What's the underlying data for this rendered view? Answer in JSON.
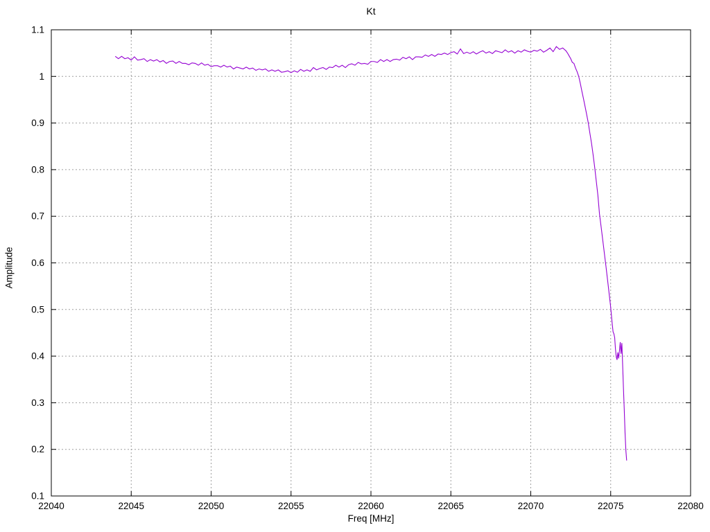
{
  "chart_data": {
    "type": "line",
    "title": "Kt",
    "xlabel": "Freq [MHz]",
    "ylabel": "Amplitude",
    "xlim": [
      22040,
      22080
    ],
    "ylim": [
      0.1,
      1.1
    ],
    "xticks": [
      22040,
      22045,
      22050,
      22055,
      22060,
      22065,
      22070,
      22075,
      22080
    ],
    "xtick_labels": [
      "22040",
      "22045",
      "22050",
      "22055",
      "22060",
      "22065",
      "22070",
      "22075",
      "22080"
    ],
    "yticks": [
      0.1,
      0.2,
      0.3,
      0.4,
      0.5,
      0.6,
      0.7,
      0.8,
      0.9,
      1.0,
      1.1
    ],
    "ytick_labels": [
      "0.1",
      "0.2",
      "0.3",
      "0.4",
      "0.5",
      "0.6",
      "0.7",
      "0.8",
      "0.9",
      "1",
      "1.1"
    ],
    "grid": true,
    "legend": "none",
    "colors": {
      "line": "#9400d3",
      "grid": "#9e9e9e",
      "axis": "#000000"
    },
    "series": [
      {
        "name": "Kt",
        "points": [
          [
            22044.0,
            1.043
          ],
          [
            22044.2,
            1.038
          ],
          [
            22044.4,
            1.043
          ],
          [
            22044.6,
            1.038
          ],
          [
            22044.8,
            1.04
          ],
          [
            22045.0,
            1.035
          ],
          [
            22045.2,
            1.042
          ],
          [
            22045.4,
            1.035
          ],
          [
            22045.6,
            1.036
          ],
          [
            22045.8,
            1.038
          ],
          [
            22046.0,
            1.032
          ],
          [
            22046.2,
            1.036
          ],
          [
            22046.4,
            1.033
          ],
          [
            22046.6,
            1.036
          ],
          [
            22046.8,
            1.031
          ],
          [
            22047.0,
            1.034
          ],
          [
            22047.2,
            1.028
          ],
          [
            22047.4,
            1.032
          ],
          [
            22047.6,
            1.033
          ],
          [
            22047.8,
            1.028
          ],
          [
            22048.0,
            1.032
          ],
          [
            22048.2,
            1.028
          ],
          [
            22048.4,
            1.028
          ],
          [
            22048.6,
            1.025
          ],
          [
            22048.8,
            1.029
          ],
          [
            22049.0,
            1.028
          ],
          [
            22049.2,
            1.024
          ],
          [
            22049.4,
            1.029
          ],
          [
            22049.6,
            1.024
          ],
          [
            22049.8,
            1.026
          ],
          [
            22050.0,
            1.021
          ],
          [
            22050.2,
            1.023
          ],
          [
            22050.4,
            1.023
          ],
          [
            22050.6,
            1.02
          ],
          [
            22050.8,
            1.024
          ],
          [
            22051.0,
            1.02
          ],
          [
            22051.2,
            1.022
          ],
          [
            22051.4,
            1.016
          ],
          [
            22051.6,
            1.02
          ],
          [
            22051.8,
            1.018
          ],
          [
            22052.0,
            1.016
          ],
          [
            22052.2,
            1.02
          ],
          [
            22052.4,
            1.016
          ],
          [
            22052.6,
            1.018
          ],
          [
            22052.8,
            1.013
          ],
          [
            22053.0,
            1.016
          ],
          [
            22053.2,
            1.014
          ],
          [
            22053.4,
            1.016
          ],
          [
            22053.6,
            1.011
          ],
          [
            22053.8,
            1.014
          ],
          [
            22054.0,
            1.011
          ],
          [
            22054.2,
            1.014
          ],
          [
            22054.4,
            1.009
          ],
          [
            22054.6,
            1.01
          ],
          [
            22054.8,
            1.012
          ],
          [
            22055.0,
            1.008
          ],
          [
            22055.2,
            1.012
          ],
          [
            22055.4,
            1.009
          ],
          [
            22055.6,
            1.015
          ],
          [
            22055.8,
            1.011
          ],
          [
            22056.0,
            1.014
          ],
          [
            22056.2,
            1.011
          ],
          [
            22056.4,
            1.019
          ],
          [
            22056.6,
            1.014
          ],
          [
            22056.8,
            1.017
          ],
          [
            22057.0,
            1.019
          ],
          [
            22057.2,
            1.015
          ],
          [
            22057.4,
            1.02
          ],
          [
            22057.6,
            1.019
          ],
          [
            22057.8,
            1.024
          ],
          [
            22058.0,
            1.02
          ],
          [
            22058.2,
            1.024
          ],
          [
            22058.4,
            1.019
          ],
          [
            22058.6,
            1.025
          ],
          [
            22058.8,
            1.027
          ],
          [
            22059.0,
            1.024
          ],
          [
            22059.2,
            1.03
          ],
          [
            22059.4,
            1.027
          ],
          [
            22059.6,
            1.028
          ],
          [
            22059.8,
            1.026
          ],
          [
            22060.0,
            1.032
          ],
          [
            22060.2,
            1.032
          ],
          [
            22060.4,
            1.03
          ],
          [
            22060.6,
            1.036
          ],
          [
            22060.8,
            1.032
          ],
          [
            22061.0,
            1.036
          ],
          [
            22061.2,
            1.032
          ],
          [
            22061.4,
            1.036
          ],
          [
            22061.6,
            1.037
          ],
          [
            22061.8,
            1.035
          ],
          [
            22062.0,
            1.041
          ],
          [
            22062.2,
            1.038
          ],
          [
            22062.4,
            1.042
          ],
          [
            22062.6,
            1.036
          ],
          [
            22062.8,
            1.042
          ],
          [
            22063.0,
            1.042
          ],
          [
            22063.2,
            1.041
          ],
          [
            22063.4,
            1.046
          ],
          [
            22063.6,
            1.043
          ],
          [
            22063.8,
            1.047
          ],
          [
            22064.0,
            1.043
          ],
          [
            22064.2,
            1.048
          ],
          [
            22064.4,
            1.047
          ],
          [
            22064.6,
            1.05
          ],
          [
            22064.8,
            1.047
          ],
          [
            22065.0,
            1.051
          ],
          [
            22065.2,
            1.053
          ],
          [
            22065.4,
            1.048
          ],
          [
            22065.6,
            1.059
          ],
          [
            22065.8,
            1.049
          ],
          [
            22066.0,
            1.052
          ],
          [
            22066.2,
            1.049
          ],
          [
            22066.4,
            1.053
          ],
          [
            22066.6,
            1.048
          ],
          [
            22066.8,
            1.052
          ],
          [
            22067.0,
            1.055
          ],
          [
            22067.2,
            1.05
          ],
          [
            22067.4,
            1.053
          ],
          [
            22067.6,
            1.049
          ],
          [
            22067.8,
            1.055
          ],
          [
            22068.0,
            1.053
          ],
          [
            22068.2,
            1.051
          ],
          [
            22068.4,
            1.057
          ],
          [
            22068.6,
            1.052
          ],
          [
            22068.8,
            1.055
          ],
          [
            22069.0,
            1.05
          ],
          [
            22069.2,
            1.055
          ],
          [
            22069.4,
            1.052
          ],
          [
            22069.6,
            1.057
          ],
          [
            22069.8,
            1.054
          ],
          [
            22070.0,
            1.052
          ],
          [
            22070.2,
            1.056
          ],
          [
            22070.4,
            1.054
          ],
          [
            22070.6,
            1.058
          ],
          [
            22070.8,
            1.052
          ],
          [
            22071.0,
            1.056
          ],
          [
            22071.2,
            1.061
          ],
          [
            22071.4,
            1.053
          ],
          [
            22071.6,
            1.064
          ],
          [
            22071.8,
            1.058
          ],
          [
            22072.0,
            1.061
          ],
          [
            22072.2,
            1.055
          ],
          [
            22072.3,
            1.05
          ],
          [
            22072.4,
            1.044
          ],
          [
            22072.5,
            1.038
          ],
          [
            22072.6,
            1.03
          ],
          [
            22072.7,
            1.028
          ],
          [
            22072.8,
            1.018
          ],
          [
            22072.9,
            1.01
          ],
          [
            22073.0,
            1.0
          ],
          [
            22073.1,
            0.985
          ],
          [
            22073.2,
            0.968
          ],
          [
            22073.3,
            0.952
          ],
          [
            22073.4,
            0.935
          ],
          [
            22073.5,
            0.918
          ],
          [
            22073.6,
            0.9
          ],
          [
            22073.7,
            0.878
          ],
          [
            22073.8,
            0.857
          ],
          [
            22073.9,
            0.832
          ],
          [
            22074.0,
            0.805
          ],
          [
            22074.1,
            0.775
          ],
          [
            22074.2,
            0.745
          ],
          [
            22074.3,
            0.705
          ],
          [
            22074.4,
            0.678
          ],
          [
            22074.5,
            0.65
          ],
          [
            22074.6,
            0.622
          ],
          [
            22074.7,
            0.594
          ],
          [
            22074.8,
            0.565
          ],
          [
            22074.9,
            0.535
          ],
          [
            22075.0,
            0.505
          ],
          [
            22075.1,
            0.468
          ],
          [
            22075.15,
            0.452
          ],
          [
            22075.2,
            0.448
          ],
          [
            22075.25,
            0.44
          ],
          [
            22075.3,
            0.415
          ],
          [
            22075.35,
            0.398
          ],
          [
            22075.4,
            0.392
          ],
          [
            22075.45,
            0.408
          ],
          [
            22075.5,
            0.395
          ],
          [
            22075.55,
            0.412
          ],
          [
            22075.6,
            0.43
          ],
          [
            22075.65,
            0.405
          ],
          [
            22075.7,
            0.428
          ],
          [
            22075.75,
            0.38
          ],
          [
            22075.8,
            0.33
          ],
          [
            22075.85,
            0.285
          ],
          [
            22075.9,
            0.235
          ],
          [
            22075.95,
            0.198
          ],
          [
            22076.0,
            0.176
          ]
        ]
      }
    ]
  }
}
